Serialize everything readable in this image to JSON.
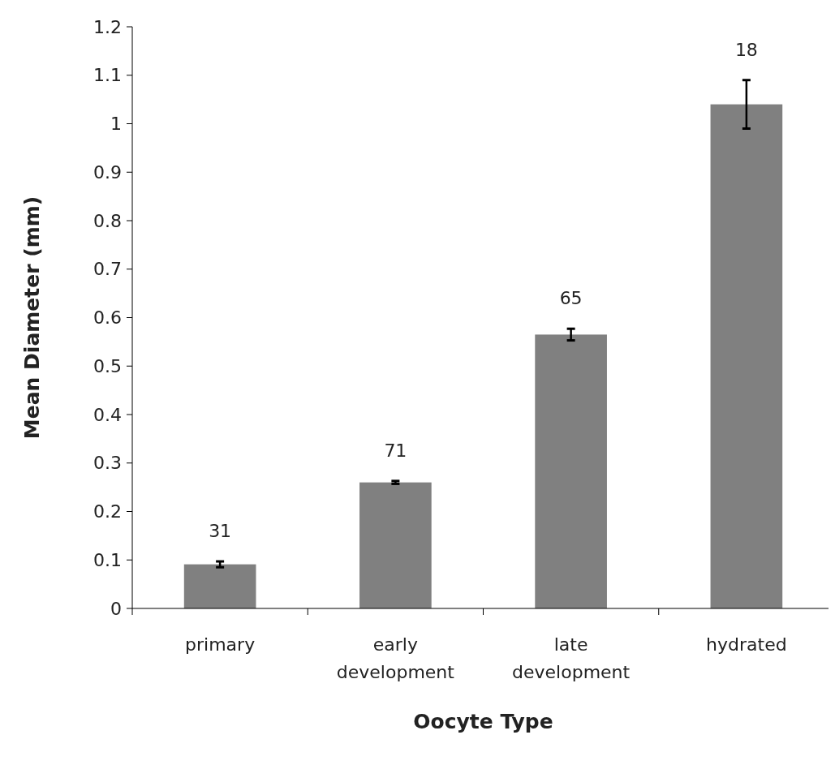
{
  "chart_data": {
    "type": "bar",
    "xlabel": "Oocyte Type",
    "ylabel": "Mean Diameter (mm)",
    "categories": [
      "primary",
      "early development",
      "late development",
      "hydrated"
    ],
    "values": [
      0.091,
      0.26,
      0.565,
      1.04
    ],
    "errors": [
      0.006,
      0.003,
      0.012,
      0.05
    ],
    "color": "#808080",
    "ylim": [
      0,
      1.2
    ],
    "yticks": [
      0,
      0.1,
      0.2,
      0.3,
      0.4,
      0.5,
      0.6,
      0.7,
      0.8,
      0.9,
      1,
      1.1,
      1.2
    ],
    "grid": false,
    "annotations": [
      "31",
      "71",
      "65",
      "18"
    ]
  }
}
